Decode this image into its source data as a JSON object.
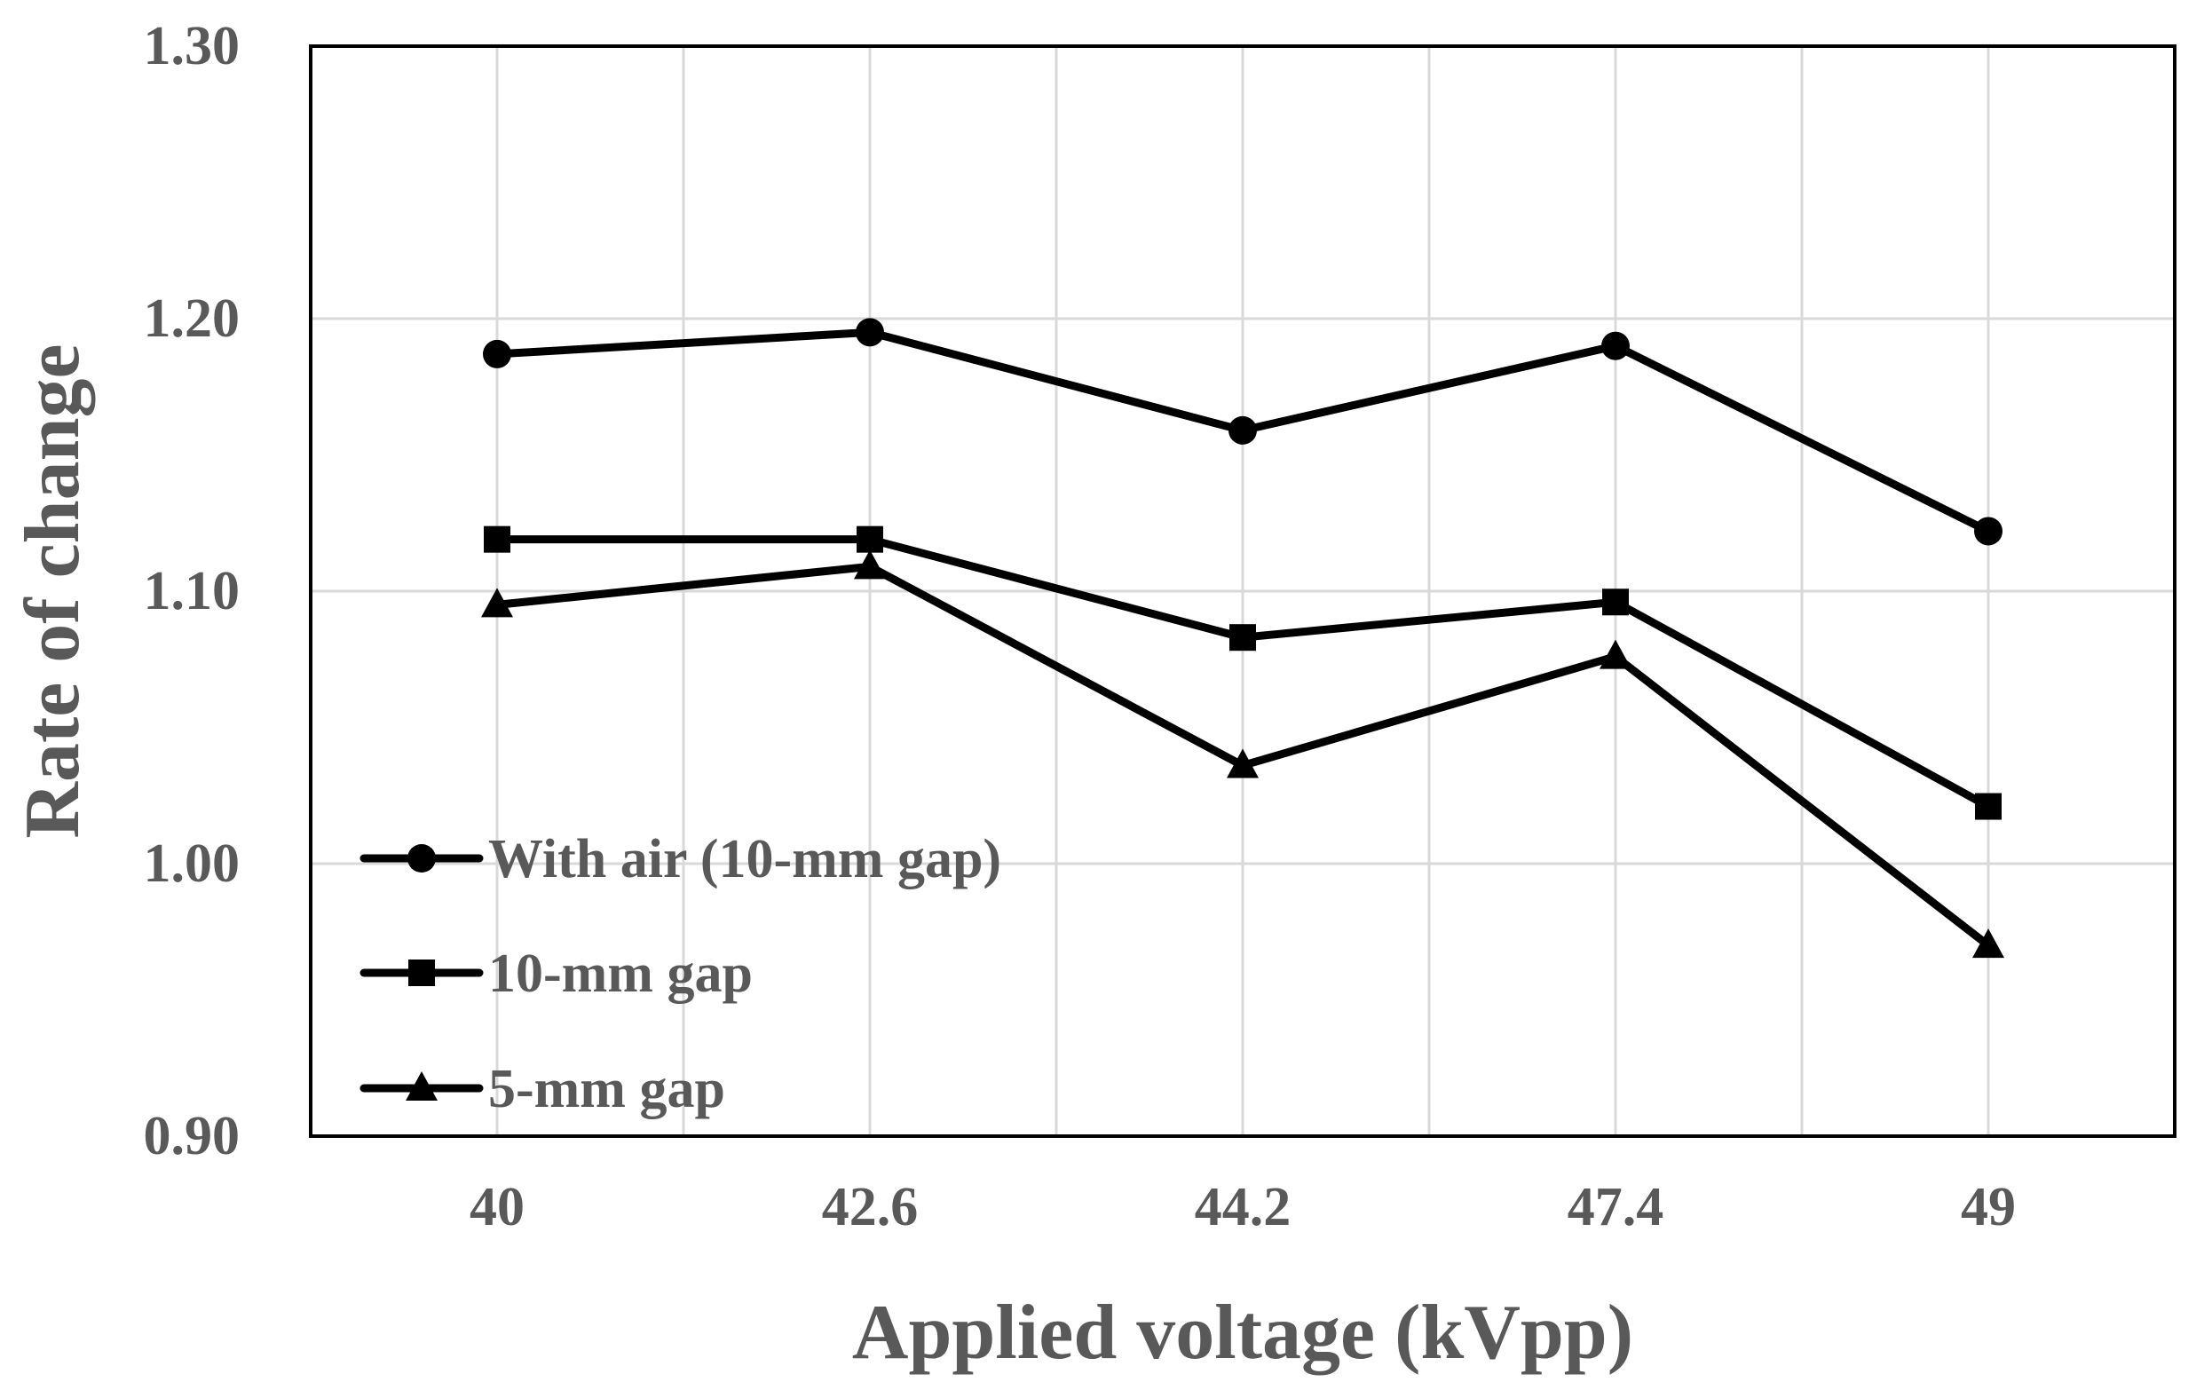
{
  "chart_data": {
    "type": "line",
    "title": "",
    "xlabel": "Applied voltage (kVpp)",
    "ylabel": "Rate of change",
    "categories": [
      "40",
      "42.6",
      "44.2",
      "47.4",
      "49"
    ],
    "ylim": [
      0.9,
      1.3
    ],
    "yticks": [
      "0.90",
      "1.00",
      "1.10",
      "1.20",
      "1.30"
    ],
    "grid": true,
    "legend_position": "bottom-left",
    "series": [
      {
        "name": "With air (10-mm gap)",
        "marker": "circle",
        "color": "#000000",
        "values": [
          1.187,
          1.195,
          1.159,
          1.19,
          1.122
        ]
      },
      {
        "name": "10-mm gap",
        "marker": "square",
        "color": "#000000",
        "values": [
          1.119,
          1.119,
          1.083,
          1.096,
          1.021
        ]
      },
      {
        "name": "5-mm gap",
        "marker": "triangle",
        "color": "#000000",
        "values": [
          1.095,
          1.109,
          1.036,
          1.076,
          0.97
        ]
      }
    ]
  }
}
